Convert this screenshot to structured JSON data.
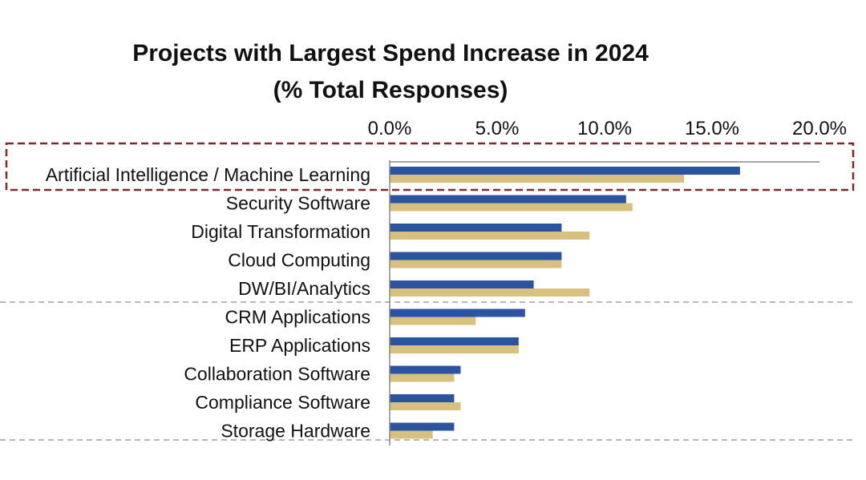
{
  "chart_data": {
    "type": "bar",
    "orientation": "horizontal",
    "title": "Projects with Largest Spend Increase in 2024",
    "subtitle": "(% Total Responses)",
    "xlabel": "",
    "ylabel": "",
    "xlim": [
      0,
      20
    ],
    "x_ticks": [
      "0.0%",
      "5.0%",
      "10.0%",
      "15.0%",
      "20.0%"
    ],
    "x_tick_values": [
      0,
      5,
      10,
      15,
      20
    ],
    "axis_position": "top",
    "grid": false,
    "legend": "none",
    "highlighted_category": "Artificial Intelligence / Machine Learning",
    "categories": [
      "Artificial Intelligence / Machine Learning",
      "Security Software",
      "Digital Transformation",
      "Cloud Computing",
      "DW/BI/Analytics",
      "CRM Applications",
      "ERP Applications",
      "Collaboration Software",
      "Compliance Software",
      "Storage Hardware"
    ],
    "series": [
      {
        "color": "#2b54a0",
        "values": [
          16.3,
          11.0,
          8.0,
          8.0,
          6.7,
          6.3,
          6.0,
          3.3,
          3.0,
          3.0
        ]
      },
      {
        "color": "#d8c07f",
        "values": [
          13.7,
          11.3,
          9.3,
          8.0,
          9.3,
          4.0,
          6.0,
          3.0,
          3.3,
          2.0
        ]
      }
    ],
    "colors": {
      "highlight_box": "#7a2a2a",
      "axis": "#888888",
      "separator": "#a0a0a0"
    }
  }
}
